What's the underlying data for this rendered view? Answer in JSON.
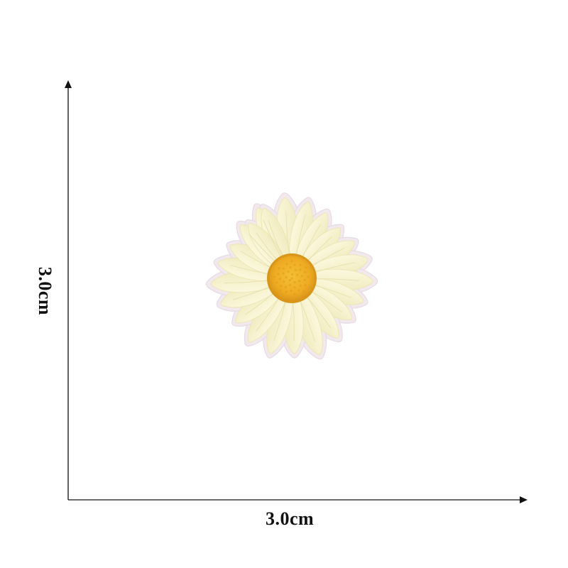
{
  "dimensions": {
    "width_label": "3.0cm",
    "height_label": "3.0cm"
  },
  "product": {
    "petal_color": "#f8f3cc",
    "petal_shadow_color": "#ece6b4",
    "border_color": "#f1e9ee",
    "center_color": "#f0b020",
    "center_shadow_color": "#d9951a",
    "axis_color": "#111111"
  }
}
